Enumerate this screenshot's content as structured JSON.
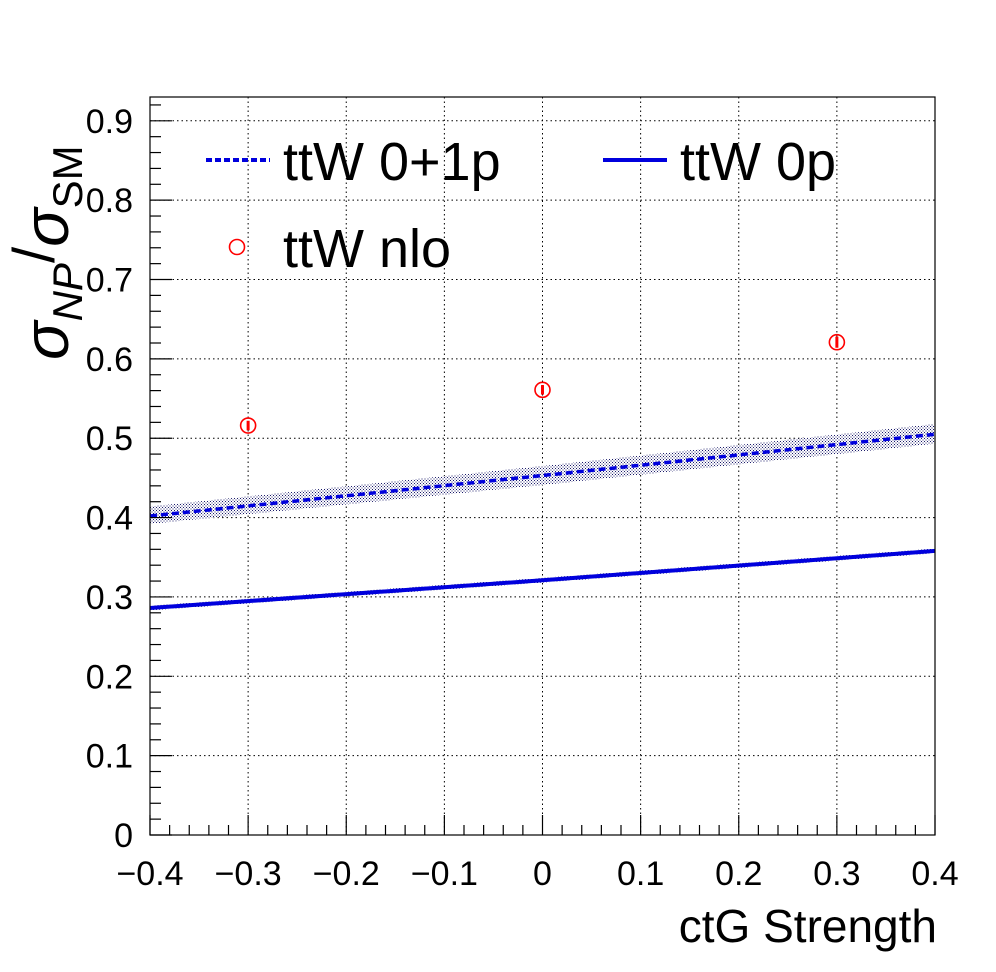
{
  "chart_data": {
    "type": "line",
    "title": "",
    "xlabel": "ctG Strength",
    "ylabel": "σ_NP/σ_SM",
    "ylabel_parts": {
      "sym1": "σ",
      "sub1": "NP",
      "slash": "/",
      "sym2": "σ",
      "sub2": "SM"
    },
    "xlim": [
      -0.4,
      0.4
    ],
    "ylim": [
      0,
      0.93
    ],
    "xticks": [
      -0.4,
      -0.3,
      -0.2,
      -0.1,
      0,
      0.1,
      0.2,
      0.3,
      0.4
    ],
    "xtick_labels": [
      "−0.4",
      "−0.3",
      "−0.2",
      "−0.1",
      "0",
      "0.1",
      "0.2",
      "0.3",
      "0.4"
    ],
    "yticks": [
      0,
      0.1,
      0.2,
      0.3,
      0.4,
      0.5,
      0.6,
      0.7,
      0.8,
      0.9
    ],
    "ytick_labels": [
      "0",
      "0.1",
      "0.2",
      "0.3",
      "0.4",
      "0.5",
      "0.6",
      "0.7",
      "0.8",
      "0.9"
    ],
    "grid": true,
    "legend_position": "top",
    "series": [
      {
        "name": "ttW 0+1p",
        "style": "dashed",
        "color": "#0000dd",
        "x": [
          -0.4,
          0.0,
          0.4
        ],
        "y": [
          0.402,
          0.453,
          0.505
        ],
        "band_low": [
          0.392,
          0.441,
          0.493
        ],
        "band_high": [
          0.414,
          0.465,
          0.518
        ]
      },
      {
        "name": "ttW 0p",
        "style": "solid",
        "color": "#0000dd",
        "x": [
          -0.4,
          0.0,
          0.4
        ],
        "y": [
          0.286,
          0.321,
          0.358
        ],
        "band_low": [
          0.283,
          0.318,
          0.355
        ],
        "band_high": [
          0.289,
          0.324,
          0.361
        ]
      },
      {
        "name": "ttW nlo",
        "style": "markers",
        "color": "#ff0000",
        "x": [
          -0.3,
          0.0,
          0.3
        ],
        "y": [
          0.516,
          0.561,
          0.621
        ],
        "err": [
          0.006,
          0.006,
          0.007
        ]
      }
    ]
  }
}
